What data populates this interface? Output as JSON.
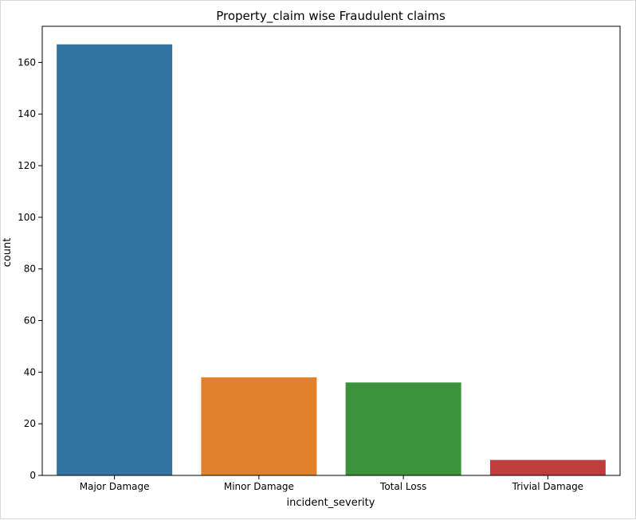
{
  "chart_data": {
    "type": "bar",
    "title": "Property_claim wise Fraudulent claims",
    "xlabel": "incident_severity",
    "ylabel": "count",
    "categories": [
      "Major Damage",
      "Minor Damage",
      "Total Loss",
      "Trivial Damage"
    ],
    "values": [
      167,
      38,
      36,
      6
    ],
    "colors": [
      "#3274a1",
      "#e1812c",
      "#3a923a",
      "#c03d3e"
    ],
    "ylim": [
      0,
      174
    ],
    "yticks": [
      0,
      20,
      40,
      60,
      80,
      100,
      120,
      140,
      160
    ],
    "grid": false,
    "legend": "none"
  }
}
